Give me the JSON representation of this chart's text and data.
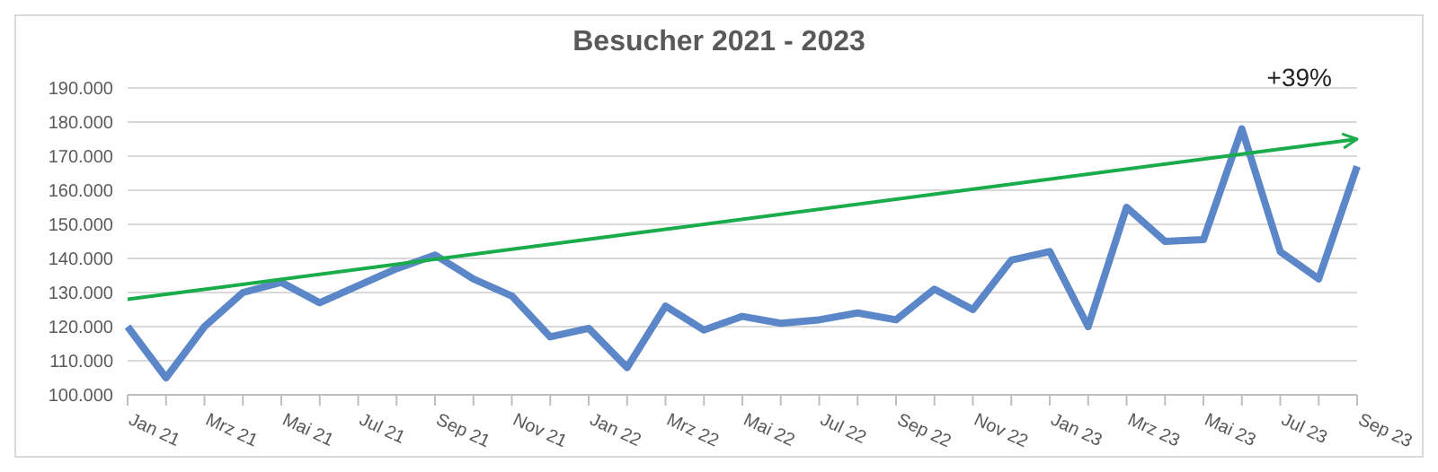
{
  "chart_data": {
    "type": "line",
    "title": "Besucher 2021 - 2023",
    "categories": [
      "Jan 21",
      null,
      "Mrz 21",
      null,
      "Mai 21",
      null,
      "Jul 21",
      null,
      "Sep 21",
      null,
      "Nov 21",
      null,
      "Jan 22",
      null,
      "Mrz 22",
      null,
      "Mai 22",
      null,
      "Jul 22",
      null,
      "Sep 22",
      null,
      "Nov 22",
      null,
      "Jan 23",
      null,
      "Mrz 23",
      null,
      "Mai 23",
      null,
      "Jul 23",
      null,
      "Sep 23"
    ],
    "series": [
      {
        "color": "#5b87c9",
        "values": [
          120000,
          105000,
          120000,
          130000,
          133000,
          127000,
          132000,
          137000,
          141000,
          134000,
          129000,
          117000,
          119500,
          108000,
          126000,
          119000,
          123000,
          121000,
          122000,
          124000,
          122000,
          131000,
          125000,
          139500,
          142000,
          120000,
          155000,
          145000,
          145500,
          178000,
          142000,
          134000,
          167000
        ]
      },
      {
        "type": "line",
        "color": "#1aab4a",
        "values": [
          128000,
          null,
          null,
          null,
          null,
          null,
          null,
          null,
          null,
          null,
          null,
          null,
          null,
          null,
          null,
          null,
          null,
          null,
          null,
          null,
          null,
          null,
          null,
          null,
          null,
          null,
          null,
          null,
          null,
          null,
          null,
          null,
          175000
        ]
      }
    ],
    "ylim": [
      100000,
      190000
    ],
    "yticks": [
      {
        "value": 100000,
        "label": "100.000"
      },
      {
        "value": 110000,
        "label": "110.000"
      },
      {
        "value": 120000,
        "label": "120.000"
      },
      {
        "value": 130000,
        "label": "130.000"
      },
      {
        "value": 140000,
        "label": "140.000"
      },
      {
        "value": 150000,
        "label": "150.000"
      },
      {
        "value": 160000,
        "label": "160.000"
      },
      {
        "value": 170000,
        "label": "170.000"
      },
      {
        "value": 180000,
        "label": "180.000"
      },
      {
        "value": 190000,
        "label": "190.000"
      }
    ],
    "grid": "y",
    "marker": "none",
    "annotations": [
      "+39%"
    ]
  }
}
